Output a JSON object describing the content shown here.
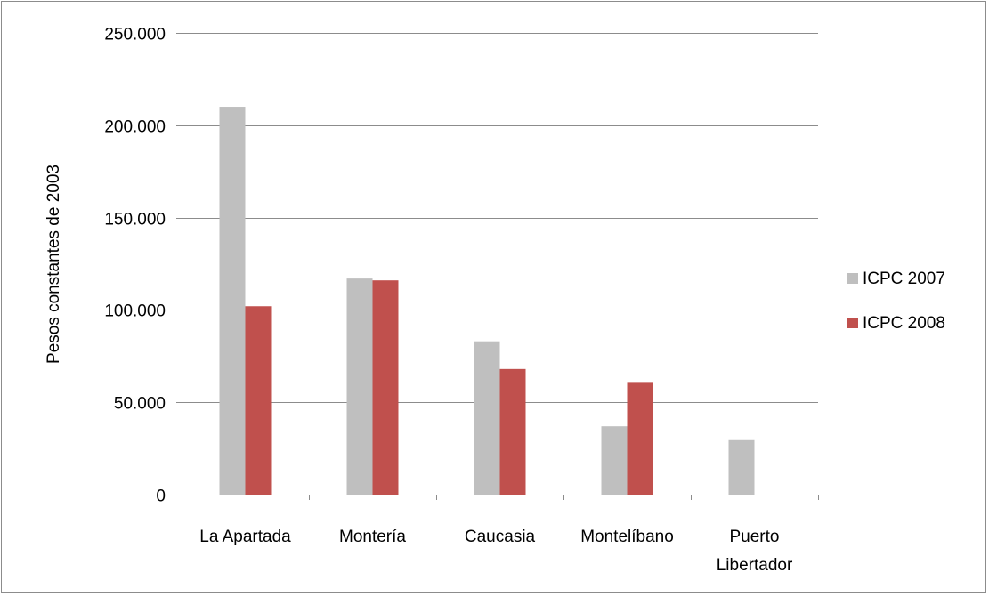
{
  "chart_data": {
    "type": "bar",
    "title": "",
    "xlabel": "",
    "ylabel": "Pesos constantes de 2003",
    "ylim": [
      0,
      250000
    ],
    "yticks": [
      0,
      50000,
      100000,
      150000,
      200000,
      250000
    ],
    "ytick_labels": [
      "0",
      "50.000",
      "100.000",
      "150.000",
      "200.000",
      "250.000"
    ],
    "categories": [
      [
        "La Apartada"
      ],
      [
        "Montería"
      ],
      [
        "Caucasia"
      ],
      [
        "Montelíbano"
      ],
      [
        "Puerto",
        "Libertador"
      ]
    ],
    "series": [
      {
        "name": "ICPC 2007",
        "color": "#bfbfbf",
        "values": [
          210000,
          117000,
          83000,
          37000,
          29500
        ]
      },
      {
        "name": "ICPC 2008",
        "color": "#c0504d",
        "values": [
          102000,
          116000,
          68000,
          61000,
          0
        ]
      }
    ],
    "grid": true,
    "legend_position": "right"
  }
}
